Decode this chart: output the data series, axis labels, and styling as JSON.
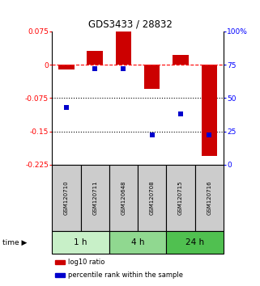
{
  "title": "GDS3433 / 28832",
  "samples": [
    "GSM120710",
    "GSM120711",
    "GSM120648",
    "GSM120708",
    "GSM120715",
    "GSM120716"
  ],
  "log10_ratio": [
    -0.01,
    0.032,
    0.075,
    -0.055,
    0.022,
    -0.205
  ],
  "percentile_rank": [
    43,
    72,
    72,
    22,
    38,
    22
  ],
  "ylim_left": [
    -0.225,
    0.075
  ],
  "ylim_right": [
    0,
    100
  ],
  "yticks_left": [
    0.075,
    0,
    -0.075,
    -0.15,
    -0.225
  ],
  "yticks_right": [
    100,
    75,
    50,
    25,
    0
  ],
  "time_groups": [
    {
      "label": "1 h",
      "indices": [
        0,
        1
      ],
      "color": "#c8f0c8"
    },
    {
      "label": "4 h",
      "indices": [
        2,
        3
      ],
      "color": "#90d890"
    },
    {
      "label": "24 h",
      "indices": [
        4,
        5
      ],
      "color": "#50c050"
    }
  ],
  "bar_color": "#cc0000",
  "dot_color": "#0000cc",
  "bar_width": 0.55,
  "dot_size": 25,
  "sample_box_color": "#cccccc",
  "hline_y": 0,
  "dotted_lines": [
    -0.075,
    -0.15
  ],
  "legend_items": [
    {
      "label": "log10 ratio",
      "color": "#cc0000"
    },
    {
      "label": "percentile rank within the sample",
      "color": "#0000cc"
    }
  ]
}
